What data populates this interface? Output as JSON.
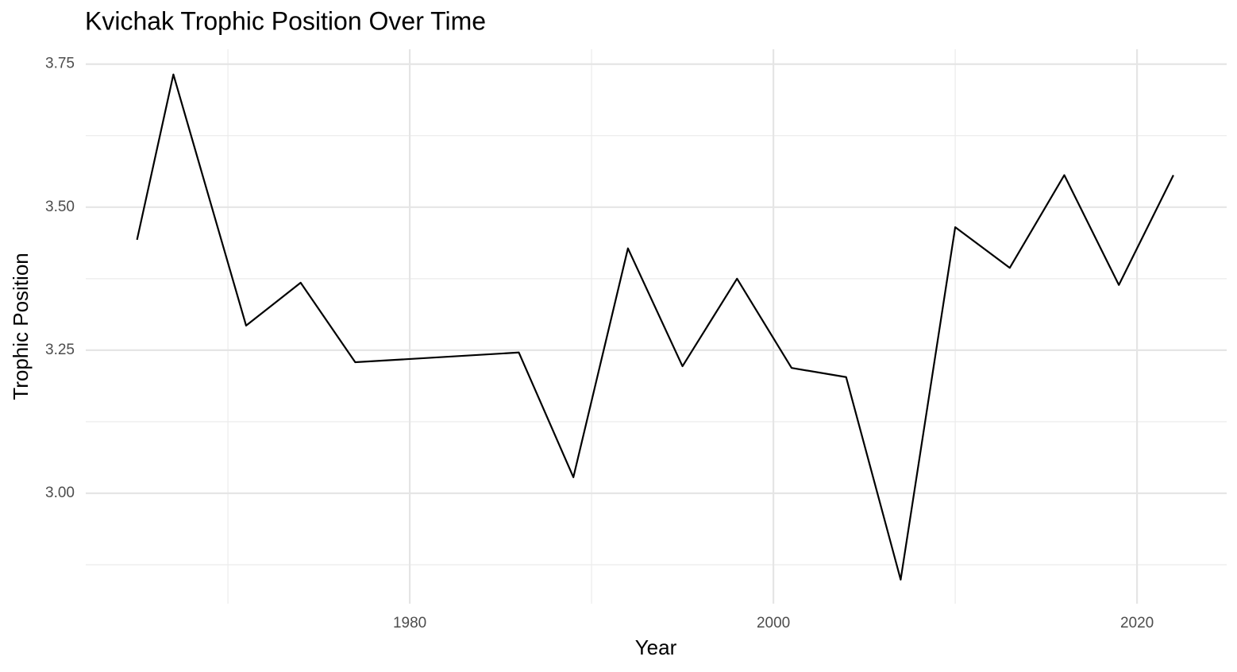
{
  "chart_data": {
    "type": "line",
    "title": "Kvichak Trophic Position Over Time",
    "x_label": "Year",
    "y_label": "Trophic Position",
    "series": [
      {
        "color": "#000000",
        "x": [
          1965,
          1967,
          1971,
          1974,
          1977,
          1986,
          1989,
          1992,
          1995,
          1998,
          2001,
          2004,
          2007,
          2010,
          2013,
          2016,
          2019,
          2022
        ],
        "values": [
          3.443,
          3.732,
          3.293,
          3.368,
          3.229,
          3.246,
          3.028,
          3.428,
          3.222,
          3.375,
          3.219,
          3.203,
          2.849,
          3.465,
          3.394,
          3.556,
          3.364,
          3.556
        ]
      }
    ],
    "xlim": [
      1962.18,
      2024.93
    ],
    "ylim": [
      2.807,
      3.776
    ],
    "xticks": [
      1980,
      2000,
      2020
    ],
    "yticks": [
      {
        "value": 3.0,
        "label": "3.00"
      },
      3.25,
      {
        "value": 3.5,
        "label": "3.50"
      },
      3.75
    ],
    "x_minor_ticks": [
      1970,
      1990,
      2010
    ],
    "y_minor_ticks": [
      2.875,
      3.125,
      3.375,
      3.625
    ],
    "grid": true
  }
}
